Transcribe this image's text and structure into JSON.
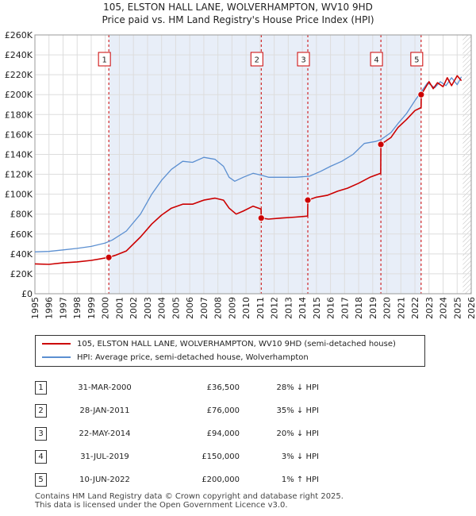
{
  "chart_data": {
    "type": "line",
    "title": "105, ELSTON HALL LANE, WOLVERHAMPTON, WV10 9HD",
    "subtitle": "Price paid vs. HM Land Registry's House Price Index (HPI)",
    "xlim": [
      1995,
      2026
    ],
    "ylim": [
      0,
      260000
    ],
    "y_ticks": [
      0,
      20000,
      40000,
      60000,
      80000,
      100000,
      120000,
      140000,
      160000,
      180000,
      200000,
      220000,
      240000,
      260000
    ],
    "y_tick_labels": [
      "£0",
      "£20K",
      "£40K",
      "£60K",
      "£80K",
      "£100K",
      "£120K",
      "£140K",
      "£160K",
      "£180K",
      "£200K",
      "£220K",
      "£240K",
      "£260K"
    ],
    "x_ticks": [
      1995,
      1996,
      1997,
      1998,
      1999,
      2000,
      2001,
      2002,
      2003,
      2004,
      2005,
      2006,
      2007,
      2008,
      2009,
      2010,
      2011,
      2012,
      2013,
      2014,
      2015,
      2016,
      2017,
      2018,
      2019,
      2020,
      2021,
      2022,
      2023,
      2024,
      2025,
      2026
    ],
    "x_tick_labels": [
      "1995",
      "1996",
      "1997",
      "1998",
      "1999",
      "2000",
      "2001",
      "2002",
      "2003",
      "2004",
      "2005",
      "2006",
      "2007",
      "2008",
      "2009",
      "2010",
      "2011",
      "2012",
      "2013",
      "2014",
      "2015",
      "2016",
      "2017",
      "2018",
      "2019",
      "2020",
      "2021",
      "2022",
      "2023",
      "2024",
      "2025",
      "2026"
    ],
    "grid": true,
    "series": [
      {
        "name": "105, ELSTON HALL LANE, WOLVERHAMPTON, WV10 9HD (semi-detached house)",
        "color": "#cc0000",
        "x": [
          1995.0,
          1996.0,
          1997.0,
          1998.0,
          1999.0,
          2000.25,
          2000.7,
          2001.5,
          2002.5,
          2003.3,
          2004.0,
          2004.7,
          2005.5,
          2006.2,
          2007.0,
          2007.8,
          2008.4,
          2008.8,
          2009.3,
          2009.8,
          2010.5,
          2011.07,
          2011.08,
          2011.6,
          2012.5,
          2013.5,
          2014.38,
          2014.39,
          2015.0,
          2015.8,
          2016.5,
          2017.2,
          2018.0,
          2018.8,
          2019.57,
          2019.58,
          2020.3,
          2020.8,
          2021.4,
          2022.0,
          2022.44,
          2022.45,
          2022.7,
          2023.0,
          2023.3,
          2023.6,
          2024.0,
          2024.3,
          2024.6,
          2025.0,
          2025.3
        ],
        "values": [
          30000,
          29500,
          31000,
          32000,
          33500,
          36500,
          38500,
          43000,
          57000,
          70000,
          79000,
          86000,
          90000,
          90000,
          94000,
          96000,
          94000,
          86000,
          80000,
          83000,
          88000,
          85000,
          76000,
          75000,
          76000,
          77000,
          78000,
          94000,
          97000,
          99000,
          103000,
          106000,
          111000,
          117000,
          121000,
          150000,
          157000,
          167000,
          175000,
          184000,
          187000,
          200000,
          206000,
          213000,
          206000,
          212000,
          208000,
          217000,
          209000,
          219000,
          214000
        ]
      },
      {
        "name": "HPI: Average price, semi-detached house, Wolverhampton",
        "color": "#5b8fd1",
        "x": [
          1995.0,
          1996.0,
          1997.0,
          1998.0,
          1999.0,
          2000.0,
          2000.5,
          2001.5,
          2002.5,
          2003.3,
          2004.0,
          2004.7,
          2005.5,
          2006.2,
          2007.0,
          2007.8,
          2008.4,
          2008.8,
          2009.2,
          2009.8,
          2010.5,
          2011.1,
          2011.6,
          2012.5,
          2013.5,
          2014.5,
          2015.3,
          2016.0,
          2016.8,
          2017.6,
          2018.4,
          2019.2,
          2019.6,
          2020.3,
          2020.8,
          2021.4,
          2022.0,
          2022.5,
          2022.9,
          2023.4,
          2023.8,
          2024.2,
          2024.6,
          2025.0,
          2025.3
        ],
        "values": [
          42000,
          42500,
          44000,
          45500,
          47500,
          51000,
          54000,
          63000,
          80000,
          100000,
          114000,
          125000,
          133000,
          132000,
          137000,
          135000,
          128000,
          117000,
          113000,
          117000,
          121000,
          119000,
          117000,
          117000,
          117000,
          118000,
          123000,
          128000,
          133000,
          140000,
          151000,
          153000,
          155000,
          162000,
          171000,
          181000,
          194000,
          204000,
          212000,
          207000,
          213000,
          209000,
          217000,
          210000,
          218000
        ]
      }
    ],
    "sales_markers": [
      {
        "label": "1",
        "x": 2000.25,
        "y": 36500
      },
      {
        "label": "2",
        "x": 2011.08,
        "y": 76000
      },
      {
        "label": "3",
        "x": 2014.39,
        "y": 94000
      },
      {
        "label": "4",
        "x": 2019.58,
        "y": 150000
      },
      {
        "label": "5",
        "x": 2022.44,
        "y": 200000
      }
    ],
    "data_end_x": 2025.4
  },
  "legend": {
    "items": [
      {
        "label": "105, ELSTON HALL LANE, WOLVERHAMPTON, WV10 9HD (semi-detached house)",
        "color": "#cc0000"
      },
      {
        "label": "HPI: Average price, semi-detached house, Wolverhampton",
        "color": "#5b8fd1"
      }
    ]
  },
  "sales": [
    {
      "num": "1",
      "date": "31-MAR-2000",
      "price": "£36,500",
      "hpi": "28% ↓ HPI"
    },
    {
      "num": "2",
      "date": "28-JAN-2011",
      "price": "£76,000",
      "hpi": "35% ↓ HPI"
    },
    {
      "num": "3",
      "date": "22-MAY-2014",
      "price": "£94,000",
      "hpi": "20% ↓ HPI"
    },
    {
      "num": "4",
      "date": "31-JUL-2019",
      "price": "£150,000",
      "hpi": "3% ↓ HPI"
    },
    {
      "num": "5",
      "date": "10-JUN-2022",
      "price": "£200,000",
      "hpi": "1% ↑ HPI"
    }
  ],
  "footer": {
    "line1": "Contains HM Land Registry data © Crown copyright and database right 2025.",
    "line2": "This data is licensed under the Open Government Licence v3.0."
  }
}
